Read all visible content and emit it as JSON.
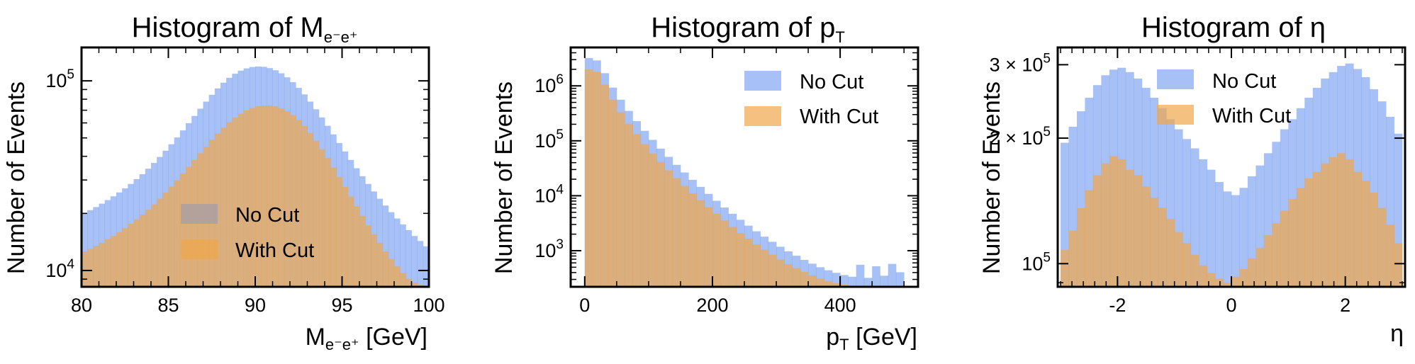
{
  "colors": {
    "no_cut": "#6c96f0",
    "with_cut": "#f0a64a",
    "axis": "#000000"
  },
  "chart_data": [
    {
      "type": "histogram",
      "title": "Histogram of M",
      "title_sub": "e⁻e⁺",
      "xlabel": "M",
      "xlabel_sub": "e⁻e⁺",
      "xlabel_unit": " [GeV]",
      "ylabel": "Number of Events",
      "yscale": "log",
      "xlim": [
        80,
        100
      ],
      "ylim": [
        8200,
        150000
      ],
      "xticks": [
        80,
        85,
        90,
        95,
        100
      ],
      "yticks": [
        {
          "value": 10000,
          "base": "10",
          "exp": "4"
        },
        {
          "value": 100000,
          "base": "10",
          "exp": "5"
        }
      ],
      "legend_loc": "lower-center",
      "series": [
        {
          "name": "No Cut",
          "values": [
            20000,
            20800,
            21600,
            22500,
            23500,
            24600,
            25800,
            27100,
            28600,
            30300,
            32200,
            34400,
            36900,
            39700,
            42800,
            46300,
            50300,
            54800,
            59800,
            65300,
            71300,
            77700,
            84400,
            91200,
            97800,
            103800,
            109000,
            113200,
            116300,
            118300,
            119000,
            118500,
            116700,
            113700,
            109600,
            104400,
            98400,
            91800,
            84800,
            77700,
            70800,
            64100,
            57900,
            52200,
            47000,
            42400,
            38300,
            34600,
            31400,
            28600,
            26100,
            23900,
            22000,
            20300,
            18800,
            17500,
            16300,
            15200,
            14300,
            13400
          ]
        },
        {
          "name": "With Cut",
          "values": [
            12600,
            13000,
            13500,
            14000,
            14600,
            15200,
            15900,
            16700,
            17600,
            18600,
            19700,
            20900,
            22300,
            23900,
            25700,
            27700,
            29900,
            32400,
            35200,
            38200,
            41500,
            45000,
            48800,
            52700,
            56600,
            60400,
            63900,
            67100,
            69800,
            71900,
            73400,
            74100,
            74100,
            73300,
            71600,
            69200,
            66000,
            62200,
            57800,
            53100,
            48300,
            43600,
            39100,
            34900,
            31100,
            27600,
            24500,
            21800,
            19400,
            17300,
            15500,
            14000,
            12600,
            11500,
            10500,
            9700,
            9000,
            8600,
            8400,
            8300
          ]
        }
      ]
    },
    {
      "type": "histogram",
      "title": "Histogram of p",
      "title_sub": "T",
      "xlabel": "p",
      "xlabel_sub": "T",
      "xlabel_unit": " [GeV]",
      "ylabel": "Number of Events",
      "yscale": "log",
      "xlim": [
        -22,
        522
      ],
      "ylim": [
        220,
        5000000
      ],
      "xticks": [
        0,
        200,
        400
      ],
      "yticks": [
        {
          "value": 1000,
          "base": "10",
          "exp": "3"
        },
        {
          "value": 10000,
          "base": "10",
          "exp": "4"
        },
        {
          "value": 100000,
          "base": "10",
          "exp": "5"
        },
        {
          "value": 1000000,
          "base": "10",
          "exp": "6"
        }
      ],
      "legend_loc": "upper-right",
      "series": [
        {
          "name": "No Cut",
          "values": [
            3200000,
            2900000,
            1700000,
            930000,
            560000,
            350000,
            228000,
            152000,
            104000,
            72000,
            51000,
            36500,
            26500,
            19500,
            14500,
            10800,
            8100,
            6100,
            4700,
            3650,
            2850,
            2250,
            1800,
            1450,
            1180,
            970,
            810,
            680,
            580,
            500,
            440,
            395,
            360,
            335,
            555,
            320,
            520,
            350,
            575,
            405
          ]
        },
        {
          "name": "With Cut",
          "values": [
            2000000,
            1800000,
            1050000,
            560000,
            330000,
            205000,
            132000,
            87000,
            59000,
            41000,
            29000,
            20800,
            15100,
            11100,
            8300,
            6200,
            4700,
            3550,
            2700,
            2100,
            1650,
            1300,
            1040,
            840,
            690,
            570,
            480,
            410,
            355,
            310,
            278,
            255,
            240,
            230,
            225,
            222,
            221,
            220,
            220,
            220
          ]
        }
      ]
    },
    {
      "type": "histogram",
      "title": "Histogram of η",
      "title_sub": "",
      "xlabel": "η",
      "xlabel_sub": "",
      "xlabel_unit": "",
      "ylabel": "Number of Events",
      "yscale": "log",
      "xlim": [
        -3.05,
        3.05
      ],
      "ylim": [
        88000,
        330000
      ],
      "xticks": [
        -2,
        0,
        2
      ],
      "yticks": [
        {
          "value": 100000,
          "base": "10",
          "exp": "5",
          "coef": ""
        },
        {
          "value": 200000,
          "base": "10",
          "exp": "5",
          "coef": "2 × "
        },
        {
          "value": 300000,
          "base": "10",
          "exp": "5",
          "coef": "3 × "
        }
      ],
      "legend_loc": "upper-center",
      "series": [
        {
          "name": "No Cut",
          "values": [
            195000,
            213000,
            232000,
            250000,
            268000,
            283000,
            292000,
            295000,
            288000,
            278000,
            264000,
            250000,
            236000,
            222000,
            210000,
            199000,
            189000,
            178000,
            168000,
            157000,
            149000,
            146000,
            152000,
            162000,
            172000,
            184000,
            196000,
            210000,
            222000,
            236000,
            250000,
            264000,
            278000,
            288000,
            298000,
            302000,
            293000,
            280000,
            262000,
            245000,
            225000,
            205000
          ]
        },
        {
          "name": "With Cut",
          "values": [
            108000,
            120000,
            136000,
            150000,
            163000,
            174000,
            181000,
            178000,
            168000,
            163000,
            153000,
            144000,
            136000,
            128000,
            119000,
            112000,
            105000,
            99000,
            95000,
            92000,
            90000,
            93000,
            97000,
            103000,
            109000,
            117000,
            125000,
            134000,
            143000,
            152000,
            160000,
            166000,
            174000,
            180000,
            184000,
            178000,
            166000,
            158000,
            148000,
            136000,
            124000,
            112000
          ]
        }
      ]
    }
  ]
}
